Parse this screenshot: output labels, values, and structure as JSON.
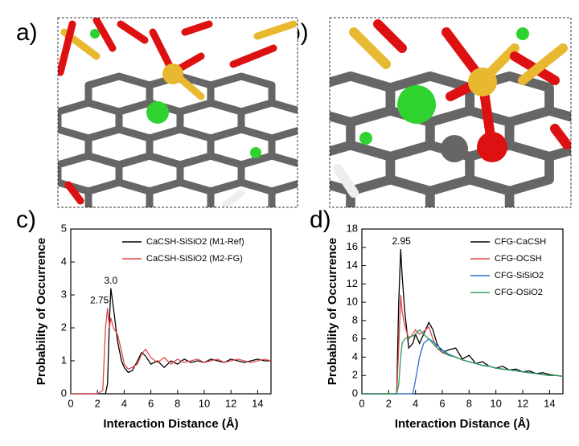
{
  "images": [
    {
      "label": "a)"
    },
    {
      "label": "b)"
    }
  ],
  "chart_data": [
    {
      "type": "line",
      "panel_label": "c)",
      "x_label": "Interaction Distance (Å)",
      "y_label": "Probability of Occurrence",
      "xlim": [
        0,
        15
      ],
      "xticks": [
        0,
        2,
        4,
        6,
        8,
        10,
        12,
        14
      ],
      "ylim": [
        0,
        5
      ],
      "yticks": [
        0,
        1,
        2,
        3,
        4,
        5
      ],
      "legend": "upper right",
      "grid": false,
      "x": [
        0,
        0.5,
        1,
        1.5,
        2,
        2.4,
        2.6,
        2.75,
        2.9,
        3.0,
        3.2,
        3.5,
        3.8,
        4.0,
        4.3,
        4.6,
        5.0,
        5.3,
        5.6,
        6.0,
        6.5,
        7,
        7.5,
        8,
        8.5,
        9,
        9.5,
        10,
        10.5,
        11,
        11.5,
        12,
        12.5,
        13,
        13.5,
        14,
        14.5,
        15
      ],
      "series": [
        {
          "name": "CaCSH-SiSiO2 (M1-Ref)",
          "color": "#000000",
          "values": [
            0,
            0,
            0,
            0,
            0,
            0,
            0,
            0.3,
            2.2,
            3.2,
            2.6,
            1.6,
            1.0,
            0.8,
            0.65,
            0.7,
            1.0,
            1.25,
            1.15,
            0.9,
            1.0,
            0.8,
            1.0,
            0.9,
            1.05,
            0.95,
            1.0,
            0.95,
            1.05,
            1.0,
            0.95,
            1.05,
            1.0,
            0.95,
            1.0,
            1.05,
            1.0,
            1.0
          ]
        },
        {
          "name": "CaCSH-SiSiO2 (M2-FG)",
          "color": "#e0474c",
          "values": [
            0,
            0,
            0,
            0,
            0,
            0.1,
            2.0,
            2.6,
            2.0,
            2.3,
            2.0,
            1.8,
            1.3,
            0.9,
            0.75,
            0.8,
            0.9,
            1.2,
            1.35,
            1.1,
            0.95,
            1.1,
            0.9,
            1.05,
            0.95,
            1.0,
            1.05,
            0.95,
            1.0,
            1.05,
            0.95,
            1.0,
            1.05,
            1.0,
            0.95,
            1.0,
            1.05,
            1.0
          ]
        }
      ],
      "annotations": [
        {
          "text": "2.75",
          "x": 2.75,
          "y": 2.6
        },
        {
          "text": "3.0",
          "x": 3.0,
          "y": 3.2
        }
      ]
    },
    {
      "type": "line",
      "panel_label": "d)",
      "x_label": "Interaction Distance (Å)",
      "y_label": "Probability of Occurrence",
      "xlim": [
        0,
        15
      ],
      "xticks": [
        0,
        2,
        4,
        6,
        8,
        10,
        12,
        14
      ],
      "ylim": [
        0,
        18
      ],
      "yticks": [
        0,
        2,
        4,
        6,
        8,
        10,
        12,
        14,
        16,
        18
      ],
      "legend": "upper right",
      "grid": false,
      "x": [
        0,
        0.5,
        1,
        1.5,
        2,
        2.4,
        2.6,
        2.75,
        2.9,
        3.0,
        3.2,
        3.5,
        3.8,
        4.0,
        4.3,
        4.6,
        5.0,
        5.3,
        5.6,
        6.0,
        6.5,
        7,
        7.5,
        8,
        8.5,
        9,
        9.5,
        10,
        10.5,
        11,
        11.5,
        12,
        12.5,
        13,
        13.5,
        14,
        14.5,
        15
      ],
      "series": [
        {
          "name": "CFG-CaCSH",
          "color": "#000000",
          "values": [
            0,
            0,
            0,
            0,
            0,
            0,
            0,
            10,
            15.8,
            13,
            9,
            5,
            5.5,
            6.5,
            5.5,
            6.5,
            7.8,
            7,
            5.5,
            4.5,
            4.8,
            5,
            3.8,
            4.2,
            3.3,
            3.5,
            3.0,
            2.8,
            3.0,
            2.6,
            2.7,
            2.4,
            2.5,
            2.2,
            2.3,
            2.1,
            2.0,
            1.9
          ]
        },
        {
          "name": "CFG-OCSH",
          "color": "#e0474c",
          "values": [
            0,
            0,
            0,
            0,
            0,
            0,
            0,
            5,
            10.8,
            9,
            7.5,
            6,
            6.5,
            7,
            6.5,
            6.8,
            7.3,
            6,
            5,
            4.5,
            4.2,
            4,
            3.7,
            3.5,
            3.3,
            3.1,
            3.0,
            2.8,
            2.7,
            2.6,
            2.5,
            2.4,
            2.3,
            2.2,
            2.1,
            2.0,
            2.0,
            1.9
          ]
        },
        {
          "name": "CFG-SiSiO2",
          "color": "#2a6fd6",
          "values": [
            0,
            0,
            0,
            0,
            0,
            0,
            0,
            0,
            0,
            0,
            0,
            0,
            0,
            1.5,
            4,
            5.5,
            6,
            5.7,
            5.3,
            4.8,
            4.3,
            4.0,
            3.7,
            3.5,
            3.3,
            3.1,
            3.0,
            2.8,
            2.7,
            2.6,
            2.5,
            2.4,
            2.3,
            2.2,
            2.1,
            2.0,
            2.0,
            1.9
          ]
        },
        {
          "name": "CFG-OSiO2",
          "color": "#2e9e5b",
          "values": [
            0,
            0,
            0,
            0,
            0,
            0,
            0,
            1,
            4,
            5.5,
            6,
            6.2,
            6.3,
            6.5,
            7,
            6.5,
            6,
            5.5,
            5,
            4.6,
            4.2,
            4,
            3.7,
            3.5,
            3.3,
            3.1,
            3.0,
            2.8,
            2.7,
            2.6,
            2.5,
            2.4,
            2.3,
            2.2,
            2.1,
            2.0,
            2.0,
            1.9
          ]
        }
      ],
      "annotations": [
        {
          "text": "2.95",
          "x": 2.95,
          "y": 15.8
        }
      ]
    }
  ]
}
